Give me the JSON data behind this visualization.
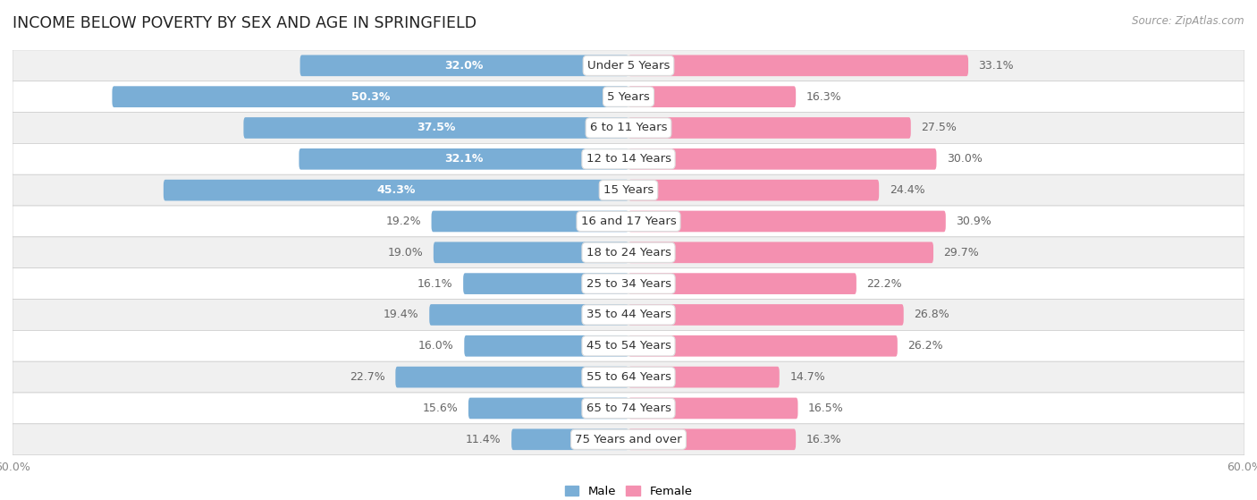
{
  "title": "INCOME BELOW POVERTY BY SEX AND AGE IN SPRINGFIELD",
  "source": "Source: ZipAtlas.com",
  "categories": [
    "Under 5 Years",
    "5 Years",
    "6 to 11 Years",
    "12 to 14 Years",
    "15 Years",
    "16 and 17 Years",
    "18 to 24 Years",
    "25 to 34 Years",
    "35 to 44 Years",
    "45 to 54 Years",
    "55 to 64 Years",
    "65 to 74 Years",
    "75 Years and over"
  ],
  "male": [
    32.0,
    50.3,
    37.5,
    32.1,
    45.3,
    19.2,
    19.0,
    16.1,
    19.4,
    16.0,
    22.7,
    15.6,
    11.4
  ],
  "female": [
    33.1,
    16.3,
    27.5,
    30.0,
    24.4,
    30.9,
    29.7,
    22.2,
    26.8,
    26.2,
    14.7,
    16.5,
    16.3
  ],
  "male_color": "#7aaed6",
  "female_color": "#f490b0",
  "male_label_color_inside": "#ffffff",
  "male_label_color_outside": "#666666",
  "female_label_color_outside": "#666666",
  "background_row_light": "#f0f0f0",
  "background_row_white": "#ffffff",
  "row_border_color": "#cccccc",
  "axis_limit": 60.0,
  "bar_height": 0.68,
  "legend_male": "Male",
  "legend_female": "Female",
  "title_fontsize": 12.5,
  "label_fontsize": 9.0,
  "axis_label_fontsize": 9,
  "category_fontsize": 9.5,
  "inside_label_threshold": 28
}
